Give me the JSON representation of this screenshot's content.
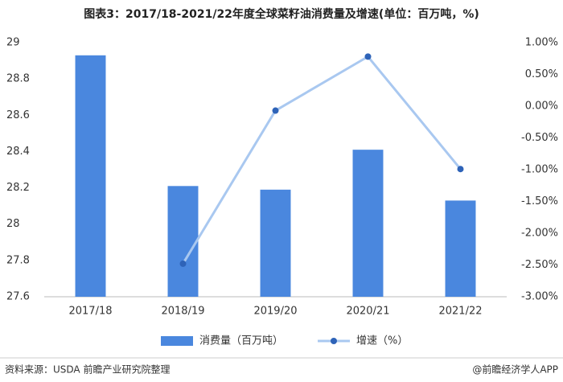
{
  "chart_data": {
    "type": "bar",
    "title": "图表3：2017/18-2021/22年度全球菜籽油消费量及增速(单位：百万吨，%)",
    "categories": [
      "2017/18",
      "2018/19",
      "2019/20",
      "2020/21",
      "2021/22"
    ],
    "series": [
      {
        "name": "消费量（百万吨）",
        "type": "bar",
        "color": "#4a87de",
        "values": [
          28.93,
          28.21,
          28.19,
          28.41,
          28.13
        ]
      },
      {
        "name": "增速（%）",
        "type": "line",
        "axis": "y2",
        "color": "#a9c8f0",
        "marker_color": "#2e63b8",
        "values": [
          null,
          -2.48,
          -0.07,
          0.78,
          -0.99
        ]
      }
    ],
    "ylim": [
      27.6,
      29
    ],
    "yticks": [
      27.6,
      27.8,
      28,
      28.2,
      28.4,
      28.6,
      28.8,
      29
    ],
    "y2lim": [
      -3,
      1
    ],
    "y2ticks": [
      {
        "value": -3,
        "label": "-3.00%"
      },
      {
        "value": -2.5,
        "label": "-2.50%"
      },
      {
        "value": -2,
        "label": "-2.00%"
      },
      {
        "value": -1.5,
        "label": "-1.50%"
      },
      {
        "value": -1,
        "label": "-1.00%"
      },
      {
        "value": -0.5,
        "label": "-0.50%"
      },
      {
        "value": 0,
        "label": "0.00%"
      },
      {
        "value": 0.5,
        "label": "0.50%"
      },
      {
        "value": 1,
        "label": "1.00%"
      }
    ],
    "source": "资料来源：USDA 前瞻产业研究院整理",
    "credit": "@前瞻经济学人APP"
  }
}
